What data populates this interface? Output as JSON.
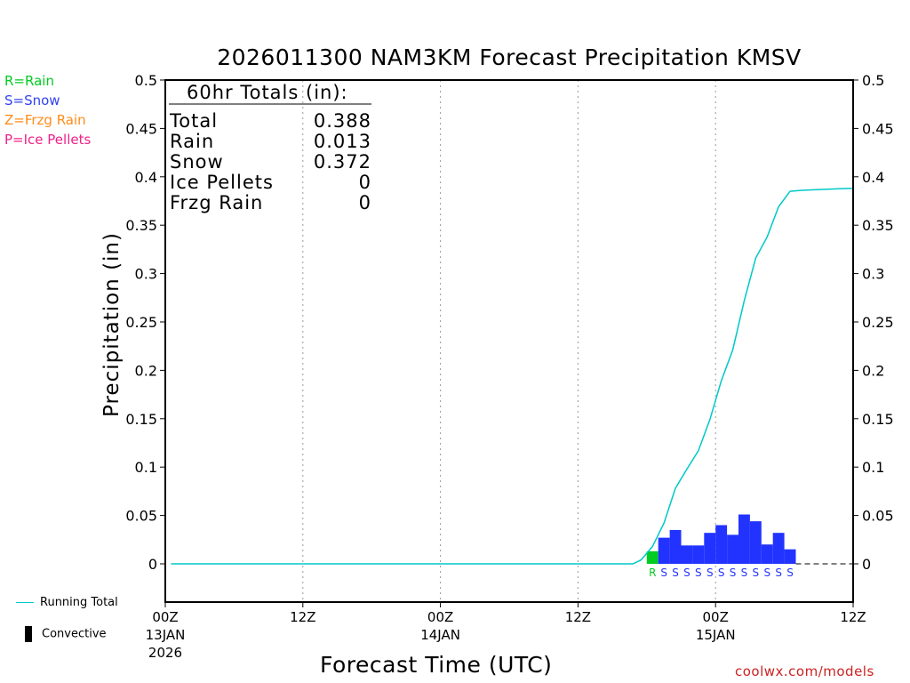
{
  "chart_data": {
    "type": "bar",
    "title": "2026011300 NAM3KM Forecast Precipitation KMSV",
    "xlabel": "Forecast Time (UTC)",
    "ylabel": "Precipitation (in)",
    "ylim": [
      -0.04,
      0.5
    ],
    "xlim_hours": [
      0,
      60
    ],
    "yticks": [
      "0",
      "0.05",
      "0.1",
      "0.15",
      "0.2",
      "0.25",
      "0.3",
      "0.35",
      "0.4",
      "0.45",
      "0.5"
    ],
    "ytick_values": [
      0,
      0.05,
      0.1,
      0.15,
      0.2,
      0.25,
      0.3,
      0.35,
      0.4,
      0.45,
      0.5
    ],
    "xticks": [
      {
        "hour": 0,
        "label": "00Z",
        "sub1": "13JAN",
        "sub2": "2026"
      },
      {
        "hour": 12,
        "label": "12Z",
        "sub1": "",
        "sub2": ""
      },
      {
        "hour": 24,
        "label": "00Z",
        "sub1": "14JAN",
        "sub2": ""
      },
      {
        "hour": 36,
        "label": "12Z",
        "sub1": "",
        "sub2": ""
      },
      {
        "hour": 48,
        "label": "00Z",
        "sub1": "15JAN",
        "sub2": ""
      },
      {
        "hour": 60,
        "label": "12Z",
        "sub1": "",
        "sub2": ""
      }
    ],
    "bars": [
      {
        "hour": 42,
        "value": 0.013,
        "type": "R"
      },
      {
        "hour": 43,
        "value": 0.027,
        "type": "S"
      },
      {
        "hour": 44,
        "value": 0.035,
        "type": "S"
      },
      {
        "hour": 45,
        "value": 0.019,
        "type": "S"
      },
      {
        "hour": 46,
        "value": 0.019,
        "type": "S"
      },
      {
        "hour": 47,
        "value": 0.032,
        "type": "S"
      },
      {
        "hour": 48,
        "value": 0.04,
        "type": "S"
      },
      {
        "hour": 49,
        "value": 0.03,
        "type": "S"
      },
      {
        "hour": 50,
        "value": 0.051,
        "type": "S"
      },
      {
        "hour": 51,
        "value": 0.044,
        "type": "S"
      },
      {
        "hour": 52,
        "value": 0.02,
        "type": "S"
      },
      {
        "hour": 53,
        "value": 0.032,
        "type": "S"
      },
      {
        "hour": 54,
        "value": 0.015,
        "type": "S"
      }
    ],
    "running_total": {
      "name": "Running Total",
      "hours": [
        0.5,
        40.8,
        41.5,
        42.5,
        43.5,
        44.5,
        45.5,
        46.5,
        47.5,
        48.5,
        49.5,
        50.5,
        51.5,
        52.5,
        53.5,
        54.5,
        55.5,
        57.5,
        59.5,
        60
      ],
      "values": [
        0,
        0,
        0.004,
        0.018,
        0.042,
        0.078,
        0.098,
        0.117,
        0.149,
        0.189,
        0.221,
        0.272,
        0.316,
        0.338,
        0.369,
        0.385,
        0.386,
        0.387,
        0.388,
        0.388
      ]
    },
    "totals": {
      "heading": "60hr Totals (in):",
      "rows": [
        {
          "label": "Total",
          "value": "0.388"
        },
        {
          "label": "Rain",
          "value": "0.013"
        },
        {
          "label": "Snow",
          "value": "0.372"
        },
        {
          "label": "Ice Pellets",
          "value": "0"
        },
        {
          "label": "Frzg Rain",
          "value": "0"
        }
      ]
    }
  },
  "legend_types": [
    {
      "label": "R=Rain",
      "color": "#00cc22"
    },
    {
      "label": "S=Snow",
      "color": "#3344ee"
    },
    {
      "label": "Z=Frzg Rain",
      "color": "#ff8c1a"
    },
    {
      "label": "P=Ice Pellets",
      "color": "#ee2288"
    }
  ],
  "bottom_legend": {
    "running_total_label": "Running Total",
    "convective_label": "Convective"
  },
  "colors": {
    "rain": "#00cc22",
    "snow": "#2233ff",
    "running_total": "#00c8c8",
    "snow_letter": "#2233ff",
    "rain_letter": "#00cc22"
  },
  "credit": "coolwx.com/models"
}
